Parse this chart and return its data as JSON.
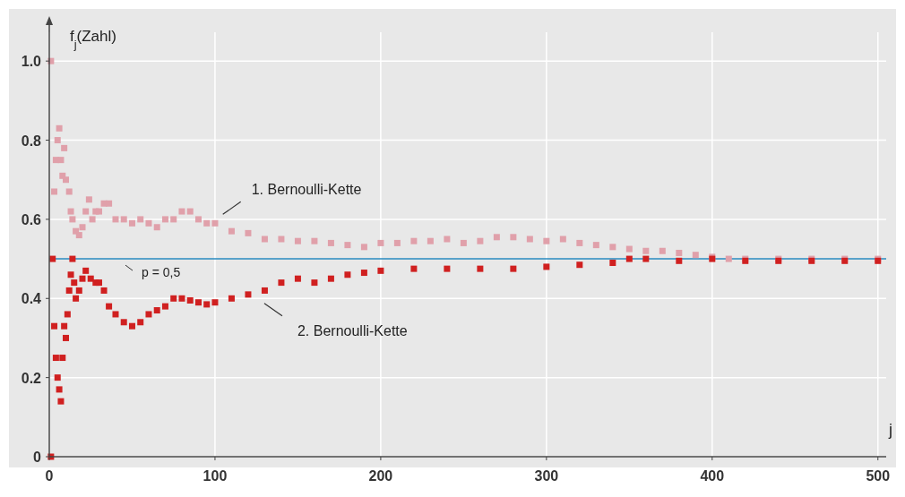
{
  "chart_data": {
    "type": "scatter",
    "ylabel": "f$_{j}$(Zahl)",
    "xlabel": "j",
    "xlim": [
      0,
      505
    ],
    "ylim": [
      0,
      1.1
    ],
    "xticks": [
      0,
      100,
      200,
      300,
      400,
      500
    ],
    "yticks": [
      0,
      {
        "value": 0.2,
        "label": "0.2"
      },
      {
        "value": 0.4,
        "label": "0.4"
      },
      {
        "value": 0.6,
        "label": "0.6"
      },
      {
        "value": 0.8,
        "label": "0.8"
      },
      {
        "value": 1,
        "label": "1.0"
      }
    ],
    "grid": true,
    "marker": "square",
    "ref_lines": [
      {
        "axis": "y",
        "value": 0.5,
        "label": "p = 0,5",
        "color": "#2a8bc0"
      }
    ],
    "series": [
      {
        "name": "1. Bernoulli-Kette",
        "color": "#e0a0aa",
        "x": [
          1,
          3,
          4,
          5,
          6,
          7,
          8,
          9,
          10,
          12,
          13,
          14,
          16,
          18,
          20,
          22,
          24,
          26,
          28,
          30,
          33,
          36,
          40,
          45,
          50,
          55,
          60,
          65,
          70,
          75,
          80,
          85,
          90,
          95,
          100,
          110,
          120,
          130,
          140,
          150,
          160,
          170,
          180,
          190,
          200,
          210,
          220,
          230,
          240,
          250,
          260,
          270,
          280,
          290,
          300,
          310,
          320,
          330,
          340,
          350,
          360,
          370,
          380,
          390,
          400,
          410,
          420,
          440,
          460,
          480,
          500
        ],
        "values": [
          1.0,
          0.67,
          0.75,
          0.8,
          0.83,
          0.75,
          0.71,
          0.78,
          0.7,
          0.67,
          0.62,
          0.6,
          0.57,
          0.56,
          0.58,
          0.62,
          0.65,
          0.6,
          0.62,
          0.62,
          0.64,
          0.64,
          0.6,
          0.6,
          0.59,
          0.6,
          0.59,
          0.58,
          0.6,
          0.6,
          0.62,
          0.62,
          0.6,
          0.59,
          0.59,
          0.57,
          0.565,
          0.55,
          0.55,
          0.545,
          0.545,
          0.54,
          0.535,
          0.53,
          0.54,
          0.54,
          0.545,
          0.545,
          0.55,
          0.54,
          0.545,
          0.555,
          0.555,
          0.55,
          0.545,
          0.55,
          0.54,
          0.535,
          0.53,
          0.525,
          0.52,
          0.52,
          0.515,
          0.51,
          0.505,
          0.5,
          0.5,
          0.5,
          0.5,
          0.5,
          0.5
        ]
      },
      {
        "name": "2. Bernoulli-Kette",
        "color": "#d02020",
        "x": [
          1,
          2,
          3,
          4,
          5,
          6,
          7,
          8,
          9,
          10,
          11,
          12,
          13,
          14,
          15,
          16,
          18,
          20,
          22,
          25,
          28,
          30,
          33,
          36,
          40,
          45,
          50,
          55,
          60,
          65,
          70,
          75,
          80,
          85,
          90,
          95,
          100,
          110,
          120,
          130,
          140,
          150,
          160,
          170,
          180,
          190,
          200,
          220,
          240,
          260,
          280,
          300,
          320,
          340,
          350,
          360,
          380,
          400,
          420,
          440,
          460,
          480,
          500
        ],
        "values": [
          0,
          0.5,
          0.33,
          0.25,
          0.2,
          0.17,
          0.14,
          0.25,
          0.33,
          0.3,
          0.36,
          0.42,
          0.46,
          0.5,
          0.44,
          0.4,
          0.42,
          0.45,
          0.47,
          0.45,
          0.44,
          0.44,
          0.42,
          0.38,
          0.36,
          0.34,
          0.33,
          0.34,
          0.36,
          0.37,
          0.38,
          0.4,
          0.4,
          0.395,
          0.39,
          0.385,
          0.39,
          0.4,
          0.41,
          0.42,
          0.44,
          0.45,
          0.44,
          0.45,
          0.46,
          0.465,
          0.47,
          0.475,
          0.475,
          0.475,
          0.475,
          0.48,
          0.485,
          0.49,
          0.5,
          0.5,
          0.495,
          0.5,
          0.495,
          0.495,
          0.495,
          0.495,
          0.495
        ]
      }
    ]
  }
}
